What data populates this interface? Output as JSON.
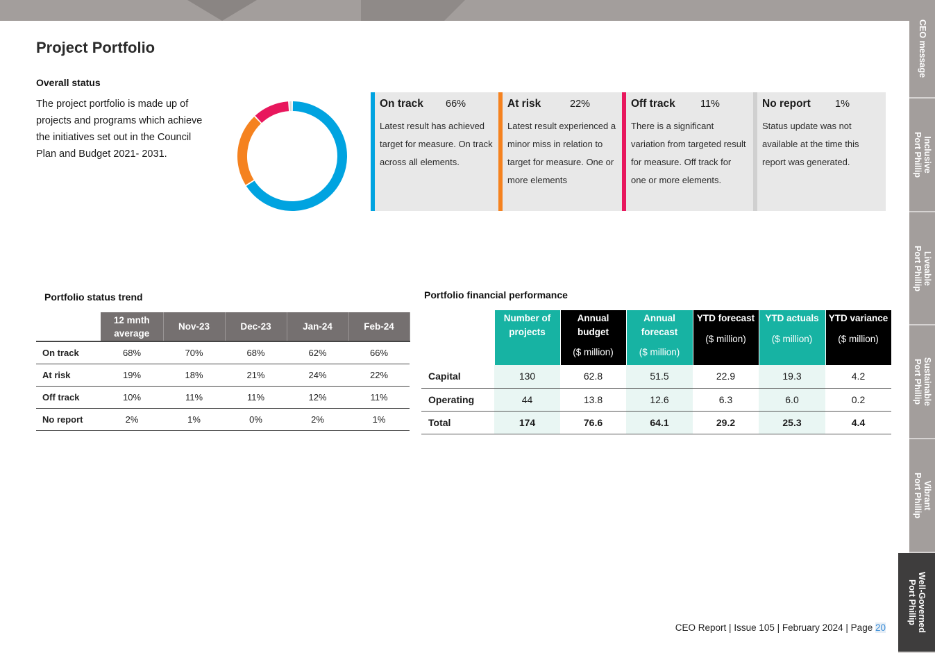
{
  "page_title": "Project Portfolio",
  "overall": {
    "heading": "Overall status",
    "intro": "The project portfolio is made up of projects and programs which achieve the initiatives set out in the Council Plan and Budget 2021- 2031.",
    "donut": [
      {
        "label": "On track",
        "value": 66,
        "color": "#00a3e0"
      },
      {
        "label": "At risk",
        "value": 22,
        "color": "#f5821f"
      },
      {
        "label": "Off track",
        "value": 11,
        "color": "#e8175d"
      },
      {
        "label": "No report",
        "value": 1,
        "color": "#d9d9d9"
      }
    ]
  },
  "status_cards": [
    {
      "name": "On track",
      "pct": "66%",
      "color": "#00a3e0",
      "desc": "Latest result has achieved target for measure. On track across all elements."
    },
    {
      "name": "At risk",
      "pct": "22%",
      "color": "#f5821f",
      "desc": "Latest result experienced a minor miss in relation to target for measure. One or more elements"
    },
    {
      "name": "Off track",
      "pct": "11%",
      "color": "#e8175d",
      "desc": "There is a significant variation from targeted result for measure. Off track for one or more elements."
    },
    {
      "name": "No report",
      "pct": "1%",
      "color": "#d0d0d0",
      "desc": "Status update was not available at the time this report was generated."
    }
  ],
  "trend": {
    "heading": "Portfolio status trend",
    "columns": [
      "12 mnth average",
      "Nov-23",
      "Dec-23",
      "Jan-24",
      "Feb-24"
    ],
    "rows": [
      {
        "label": "On track",
        "values": [
          "68%",
          "70%",
          "68%",
          "62%",
          "66%"
        ]
      },
      {
        "label": "At risk",
        "values": [
          "19%",
          "18%",
          "21%",
          "24%",
          "22%"
        ]
      },
      {
        "label": "Off track",
        "values": [
          "10%",
          "11%",
          "11%",
          "12%",
          "11%"
        ]
      },
      {
        "label": "No report",
        "values": [
          "2%",
          "1%",
          "0%",
          "2%",
          "1%"
        ]
      }
    ]
  },
  "financial": {
    "heading": "Portfolio financial performance",
    "columns": [
      {
        "title": "Number of projects",
        "unit": "",
        "style": "teal"
      },
      {
        "title": "Annual budget",
        "unit": "($ million)",
        "style": "black"
      },
      {
        "title": "Annual forecast",
        "unit": "($ million)",
        "style": "teal"
      },
      {
        "title": "YTD forecast",
        "unit": "($ million)",
        "style": "black"
      },
      {
        "title": "YTD actuals",
        "unit": "($ million)",
        "style": "teal"
      },
      {
        "title": "YTD variance",
        "unit": "($ million)",
        "style": "black"
      }
    ],
    "rows": [
      {
        "label": "Capital",
        "values": [
          "130",
          "62.8",
          "51.5",
          "22.9",
          "19.3",
          "4.2"
        ],
        "total": false
      },
      {
        "label": "Operating",
        "values": [
          "44",
          "13.8",
          "12.6",
          "6.3",
          "6.0",
          "0.2"
        ],
        "total": false
      },
      {
        "label": "Total",
        "values": [
          "174",
          "76.6",
          "64.1",
          "29.2",
          "25.3",
          "4.4"
        ],
        "total": true
      }
    ]
  },
  "side_tabs": [
    {
      "line1": "CEO message",
      "line2": ""
    },
    {
      "line1": "Inclusive",
      "line2": "Port Phillip"
    },
    {
      "line1": "Liveable",
      "line2": "Port Phillip"
    },
    {
      "line1": "Sustainable",
      "line2": "Port Phillip"
    },
    {
      "line1": "Vibrant",
      "line2": "Port Phillip"
    },
    {
      "line1": "Well-Governed",
      "line2": "Port Phillip"
    }
  ],
  "footer": {
    "text": "CEO Report | Issue 105 | February 2024 | Page ",
    "page": "20"
  }
}
